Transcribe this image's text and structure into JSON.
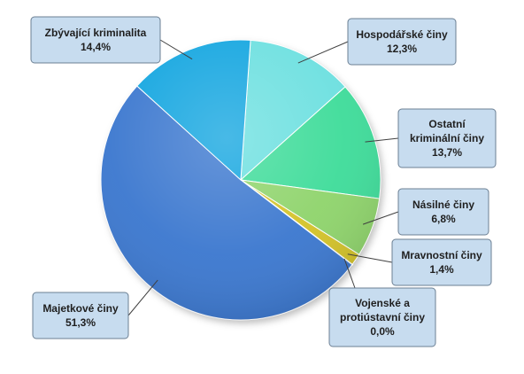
{
  "chart_data": {
    "type": "pie",
    "slices": [
      {
        "name_lines": [
          "Hospodářské činy"
        ],
        "pct_label": "12,3%",
        "value": 12.3,
        "color": "#6de0e0"
      },
      {
        "name_lines": [
          "Ostatní",
          "kriminální činy"
        ],
        "pct_label": "13,7%",
        "value": 13.7,
        "color": "#3fdc9a"
      },
      {
        "name_lines": [
          "Násilné činy"
        ],
        "pct_label": "6,8%",
        "value": 6.8,
        "color": "#8fd46c"
      },
      {
        "name_lines": [
          "Mravnostní činy"
        ],
        "pct_label": "1,4%",
        "value": 1.4,
        "color": "#d4c32a"
      },
      {
        "name_lines": [
          "Vojenské a",
          "protiústavní činy"
        ],
        "pct_label": "0,0%",
        "value": 0.0,
        "color": "#b0b0b0"
      },
      {
        "name_lines": [
          "Majetkové činy"
        ],
        "pct_label": "51,3%",
        "value": 51.3,
        "color": "#3c78cf"
      },
      {
        "name_lines": [
          "Zbývající kriminalita"
        ],
        "pct_label": "14,4%",
        "value": 14.4,
        "color": "#14a6e0"
      }
    ]
  }
}
